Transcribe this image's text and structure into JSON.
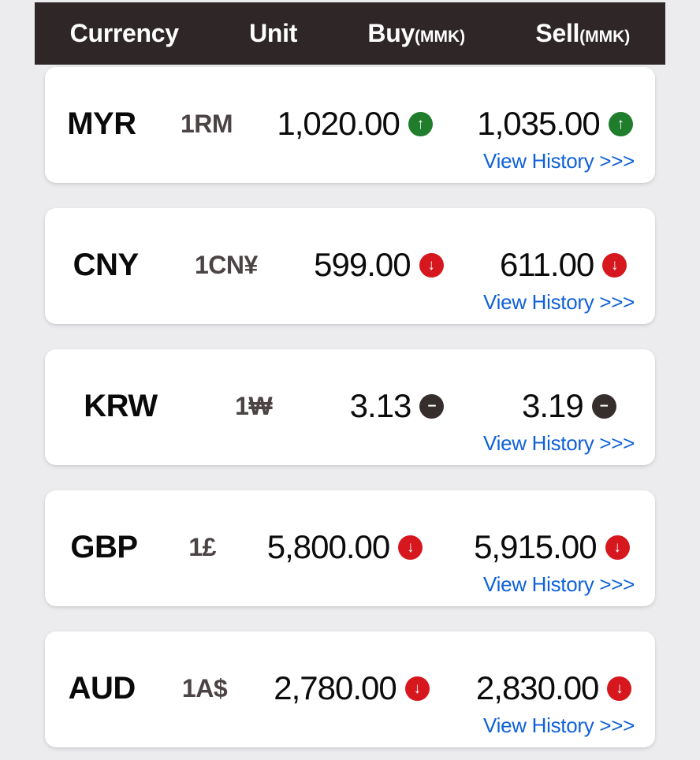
{
  "header": {
    "columns": [
      {
        "label": "Currency",
        "suffix": ""
      },
      {
        "label": "Unit",
        "suffix": ""
      },
      {
        "label": "Buy",
        "suffix": "(MMK)"
      },
      {
        "label": "Sell",
        "suffix": "(MMK)"
      }
    ]
  },
  "icons": {
    "up": "↑",
    "down": "↓",
    "flat": "−"
  },
  "colors": {
    "page_bg": "#ececee",
    "header_bg": "#2e2627",
    "card_bg": "#ffffff",
    "link_blue": "#0f61d8",
    "trend_up_green": "#1f7d2c",
    "trend_down_red": "#d6171e",
    "trend_flat_dark": "#362d2d",
    "rate_text": "#0b0b0b",
    "unit_text": "#4b4344"
  },
  "rows": [
    {
      "currency": "MYR",
      "unit": "1RM",
      "buy": "1,020.00",
      "buy_trend": "up",
      "sell": "1,035.00",
      "sell_trend": "up",
      "history_label": "View History >>>"
    },
    {
      "currency": "CNY",
      "unit": "1CN¥",
      "buy": "599.00",
      "buy_trend": "down",
      "sell": "611.00",
      "sell_trend": "down",
      "history_label": "View History >>>"
    },
    {
      "currency": "KRW",
      "unit": "1₩",
      "buy": "3.13",
      "buy_trend": "flat",
      "sell": "3.19",
      "sell_trend": "flat",
      "history_label": "View History >>>"
    },
    {
      "currency": "GBP",
      "unit": "1£",
      "buy": "5,800.00",
      "buy_trend": "down",
      "sell": "5,915.00",
      "sell_trend": "down",
      "history_label": "View History >>>"
    },
    {
      "currency": "AUD",
      "unit": "1A$",
      "buy": "2,780.00",
      "buy_trend": "down",
      "sell": "2,830.00",
      "sell_trend": "down",
      "history_label": "View History >>>"
    }
  ]
}
